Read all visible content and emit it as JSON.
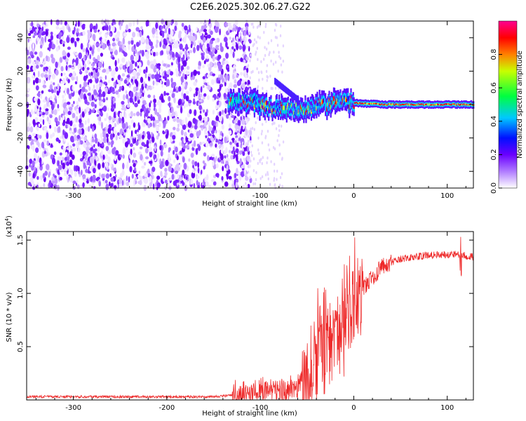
{
  "title": "C2E6.2025.302.06.27.G22",
  "chart_data": [
    {
      "type": "heatmap",
      "name": "spectrogram",
      "xlabel": "Height of straight line (km)",
      "ylabel": "Frequency (Hz)",
      "xlim": [
        -350,
        128
      ],
      "ylim": [
        -50,
        50
      ],
      "xticks": [
        -300,
        -200,
        -100,
        0,
        100
      ],
      "yticks": [
        -40,
        -20,
        0,
        20,
        40
      ],
      "colorbar": {
        "label": "Normalized spectral amplitude",
        "range": [
          0.0,
          1.0
        ],
        "ticks": [
          0.0,
          0.2,
          0.4,
          0.6,
          0.8
        ],
        "tick_labels": [
          "0.0",
          "0.2",
          "0.4",
          "0.6",
          "0.8"
        ],
        "colors": [
          "#ffffff",
          "#7b00ff",
          "#0000ff",
          "#00ffff",
          "#00ff00",
          "#ffff00",
          "#ff0000",
          "#ff00ff"
        ]
      },
      "signal_track": [
        {
          "x": -130,
          "y": 1
        },
        {
          "x": -110,
          "y": 2
        },
        {
          "x": -90,
          "y": -2
        },
        {
          "x": -70,
          "y": -3
        },
        {
          "x": -50,
          "y": -2
        },
        {
          "x": -30,
          "y": 0
        },
        {
          "x": -10,
          "y": 2
        },
        {
          "x": 0,
          "y": 1
        },
        {
          "x": 30,
          "y": 0
        },
        {
          "x": 60,
          "y": 0
        },
        {
          "x": 90,
          "y": 0
        },
        {
          "x": 128,
          "y": 0
        }
      ]
    },
    {
      "type": "line",
      "name": "snr",
      "xlabel": "Height of straight line (km)",
      "ylabel": "SNR (10 * v/v)",
      "y_multiplier": "(x10",
      "y_multiplier_exp": "4",
      "y_multiplier_close": ")",
      "xlim": [
        -350,
        128
      ],
      "ylim": [
        0,
        1.58
      ],
      "xticks": [
        -300,
        -200,
        -100,
        0,
        100
      ],
      "yticks": [
        0.5,
        1.0,
        1.5
      ],
      "ytick_labels": [
        "0.5",
        "1.0",
        "1.5"
      ],
      "color": "#ee2a2a",
      "envelope": [
        {
          "x": -350,
          "y": 0.03
        },
        {
          "x": -150,
          "y": 0.03
        },
        {
          "x": -120,
          "y": 0.05
        },
        {
          "x": -90,
          "y": 0.1
        },
        {
          "x": -70,
          "y": 0.08
        },
        {
          "x": -50,
          "y": 0.2
        },
        {
          "x": -40,
          "y": 0.45
        },
        {
          "x": -30,
          "y": 0.55
        },
        {
          "x": -20,
          "y": 0.6
        },
        {
          "x": -10,
          "y": 0.75
        },
        {
          "x": 0,
          "y": 0.95
        },
        {
          "x": 15,
          "y": 1.1
        },
        {
          "x": 30,
          "y": 1.25
        },
        {
          "x": 50,
          "y": 1.32
        },
        {
          "x": 80,
          "y": 1.36
        },
        {
          "x": 110,
          "y": 1.37
        },
        {
          "x": 128,
          "y": 1.34
        }
      ]
    }
  ]
}
